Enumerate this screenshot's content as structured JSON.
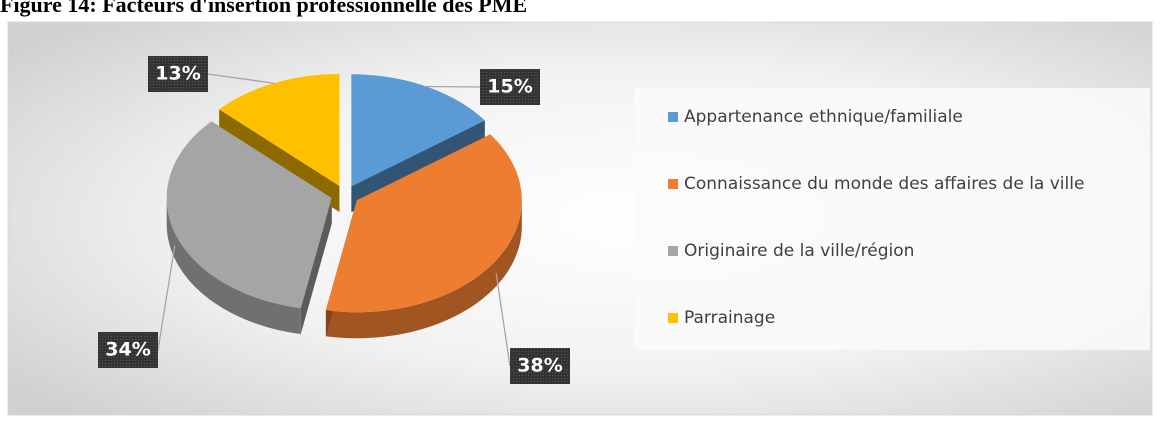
{
  "chart_data": {
    "type": "pie",
    "title": "Figure 14: Facteurs d'insertion professionnelle des PME",
    "categories": [
      "Appartenance ethnique/familiale",
      "Connaissance du monde des affaires de la ville",
      "Originaire de la ville/région",
      "Parrainage"
    ],
    "values": [
      15,
      38,
      34,
      13
    ],
    "value_labels": [
      "15%",
      "38%",
      "34%",
      "13%"
    ],
    "colors": [
      "#5b9bd5",
      "#ed7d31",
      "#a5a5a5",
      "#ffc000"
    ],
    "legend": "right"
  }
}
